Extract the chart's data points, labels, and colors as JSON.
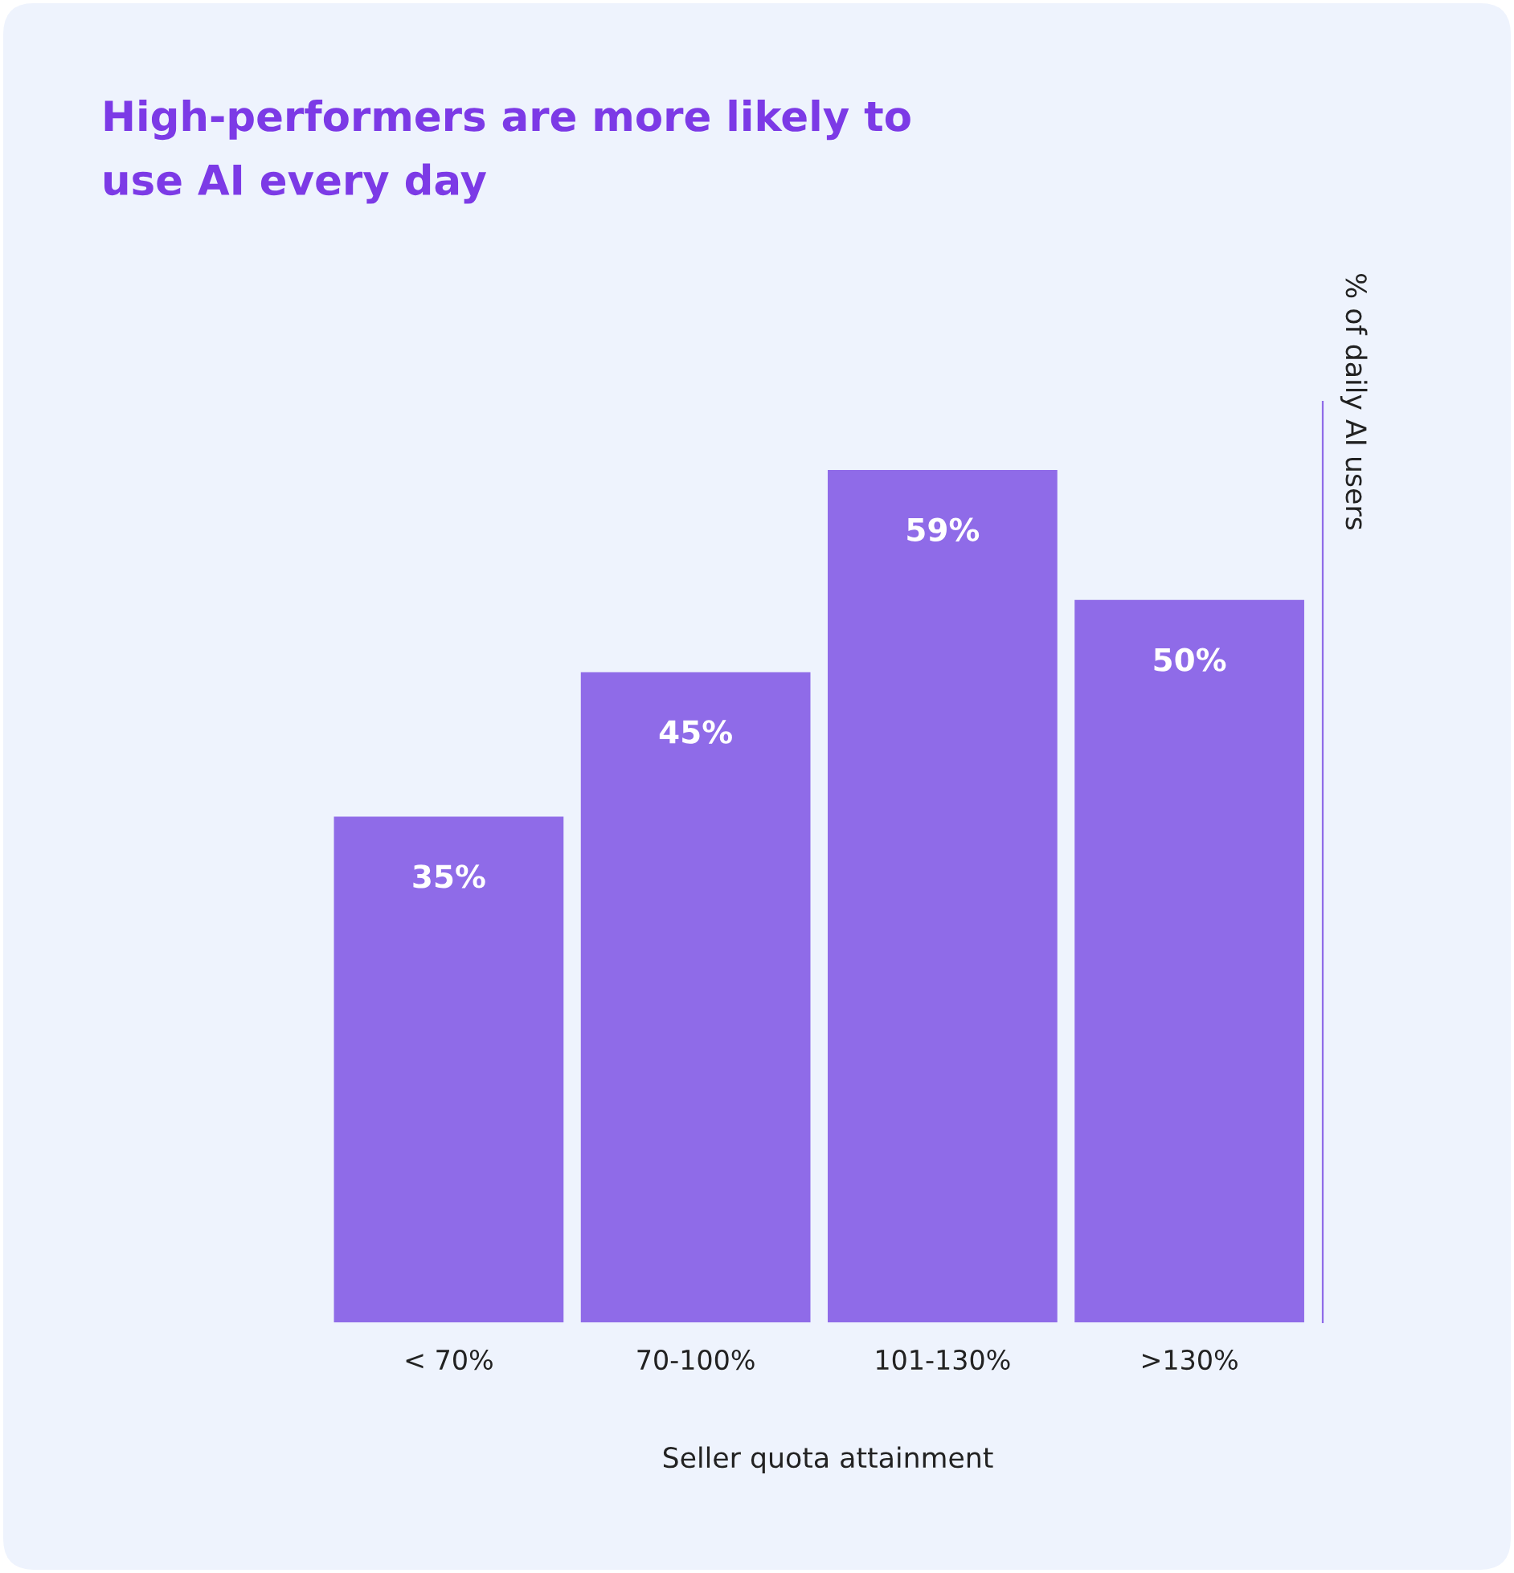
{
  "chart_data": {
    "type": "bar",
    "title": "High-performers are more likely to\nuse AI every day",
    "categories": [
      "< 70%",
      "70-100%",
      "101-130%",
      ">130%"
    ],
    "values": [
      35,
      45,
      59,
      50
    ],
    "value_labels": [
      "35%",
      "45%",
      "59%",
      "50%"
    ],
    "color": "#8f6be8",
    "xlabel": "Seller quota attainment",
    "ylabel": "% of daily AI users",
    "grid": false,
    "legend": false
  }
}
